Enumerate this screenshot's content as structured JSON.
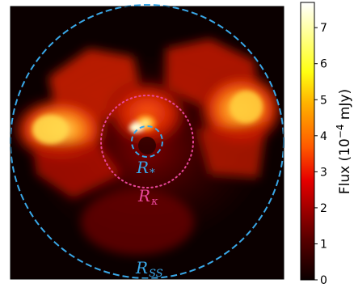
{
  "chart_data": {
    "type": "heatmap",
    "title": "",
    "colormap": "hot",
    "colorbar": {
      "label": "Flux (10$^{-4}$ mJy)",
      "label_parts": [
        "Flux (10",
        "−4",
        " mJy)"
      ],
      "range": [
        0,
        7.7
      ],
      "ticks": [
        0,
        1,
        2,
        3,
        4,
        5,
        6,
        7
      ],
      "tick_labels": [
        "0",
        "1",
        "2",
        "3",
        "4",
        "5",
        "6",
        "7"
      ]
    },
    "circles": [
      {
        "name": "R_ss",
        "label_main": "R",
        "label_sub": "SS",
        "style": "dashed",
        "color": "#3aa8e8"
      },
      {
        "name": "R_kappa",
        "label_main": "R",
        "label_sub": "κ",
        "style": "dotted",
        "color": "#e8469a"
      },
      {
        "name": "R_star",
        "label_main": "R",
        "label_sub": "*",
        "style": "dashed",
        "color": "#3aa8e8"
      }
    ],
    "grid": false,
    "legend": "none",
    "features": [
      {
        "name": "left-lobe",
        "peak_flux": 6.5
      },
      {
        "name": "right-lobe",
        "peak_flux": 6.0
      },
      {
        "name": "center-arc",
        "peak_flux": 7.7
      }
    ]
  }
}
